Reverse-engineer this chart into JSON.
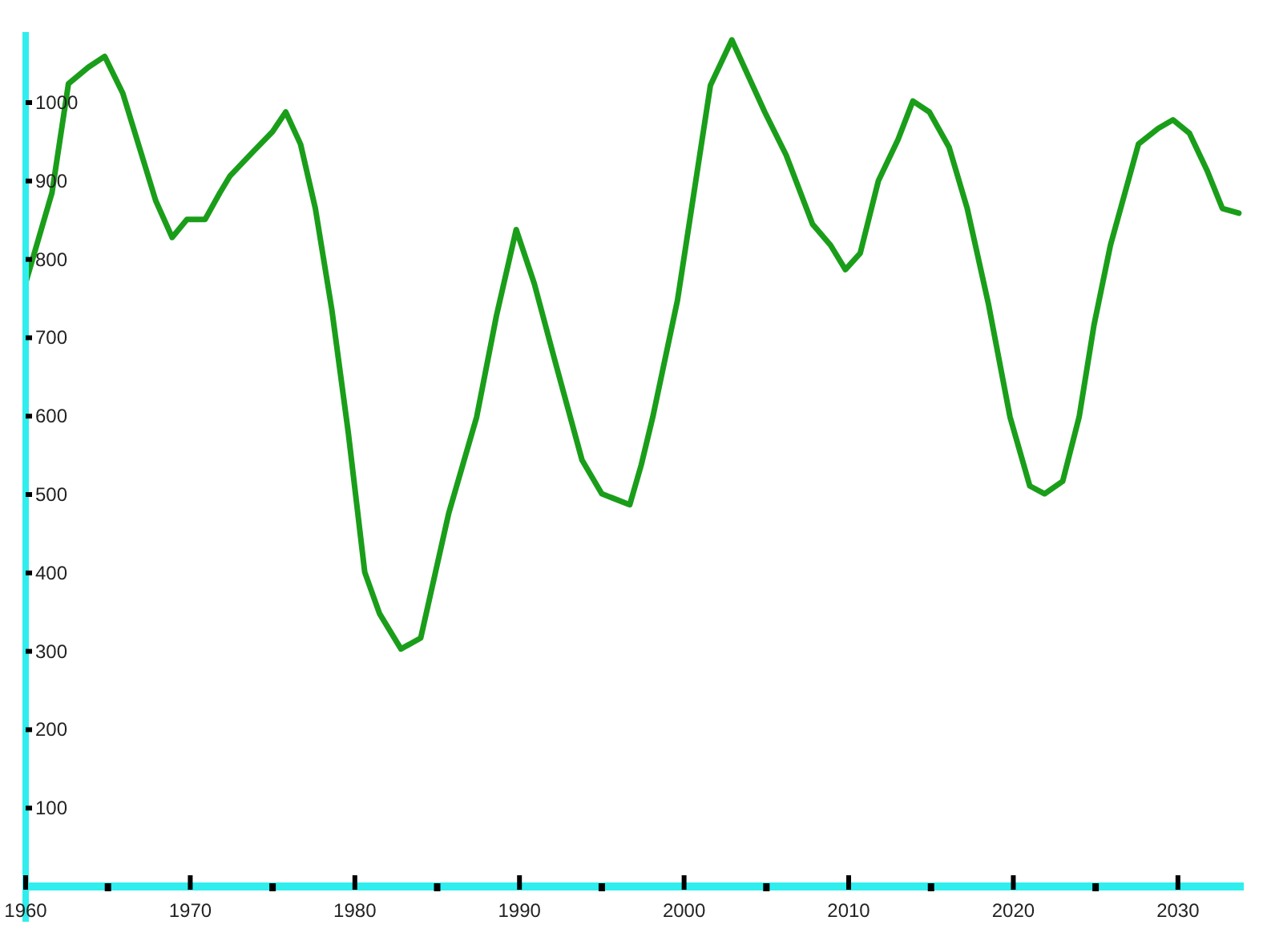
{
  "chart_data": {
    "type": "line",
    "x": [
      1960,
      1961.6,
      1962.6,
      1963.8,
      1964.8,
      1965.9,
      1967.9,
      1968.9,
      1969.8,
      1970.9,
      1971.8,
      1972.4,
      1973.8,
      1975,
      1975.8,
      1976.7,
      1977.6,
      1978.6,
      1979.6,
      1980.6,
      1981.5,
      1982.8,
      1984,
      1985.7,
      1987.4,
      1988.6,
      1989.8,
      1990.9,
      1992.2,
      1993.8,
      1995,
      1996.7,
      1997.4,
      1998.1,
      1999.6,
      2000.6,
      2001.6,
      2002.9,
      2004.9,
      2006.2,
      2007.8,
      2008.9,
      2009.8,
      2010.7,
      2011.8,
      2013,
      2013.9,
      2014.9,
      2016.1,
      2017.2,
      2018.5,
      2019.8,
      2021,
      2021.9,
      2023,
      2024,
      2024.9,
      2025.9,
      2027.6,
      2028.8,
      2029.7,
      2030.7,
      2031.8,
      2032.7,
      2033.7
    ],
    "series": [
      {
        "color": "#1a9e1a",
        "values": [
          770,
          885,
          1024,
          1045,
          1059,
          1012,
          875,
          828,
          851,
          851,
          885,
          906,
          937,
          963,
          988,
          947,
          865,
          736,
          579,
          401,
          348,
          303,
          317,
          476,
          599,
          728,
          838,
          769,
          667,
          544,
          501,
          487,
          538,
          599,
          748,
          885,
          1022,
          1080,
          988,
          933,
          845,
          818,
          787,
          808,
          900,
          953,
          1002,
          988,
          943,
          865,
          742,
          599,
          511,
          501,
          517,
          599,
          716,
          818,
          947,
          967,
          978,
          961,
          912,
          865,
          859
        ]
      }
    ],
    "xlim": [
      1960,
      2034
    ],
    "ylim": [
      0,
      1090
    ],
    "xticks": [
      1960,
      {
        "value": 1965,
        "label": null
      },
      1970,
      {
        "value": 1975,
        "label": null
      },
      1980,
      {
        "value": 1985,
        "label": null
      },
      1990,
      {
        "value": 1995,
        "label": null
      },
      2000,
      {
        "value": 2005,
        "label": null
      },
      2010,
      {
        "value": 2015,
        "label": null
      },
      2020,
      {
        "value": 2025,
        "label": null
      },
      2030
    ],
    "yticks": [
      100,
      200,
      300,
      400,
      500,
      600,
      700,
      800,
      900,
      1000
    ],
    "line_style": "solid"
  }
}
